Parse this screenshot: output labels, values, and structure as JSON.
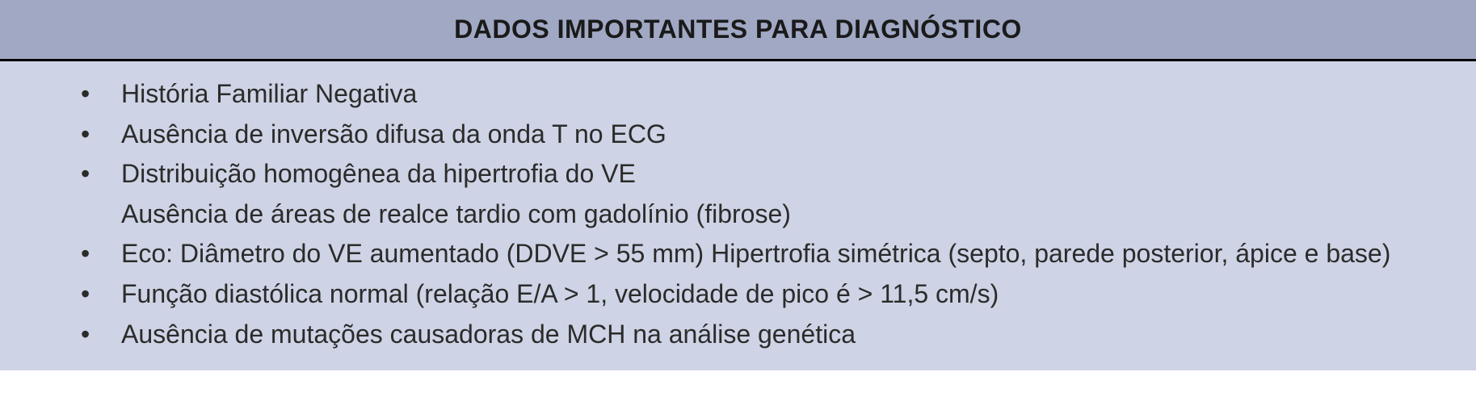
{
  "table": {
    "header_title": "DADOS IMPORTANTES PARA DIAGNÓSTICO",
    "header_background": "#a0a8c4",
    "header_border_bottom": "#000000",
    "content_background": "#ced4e5",
    "text_color": "#2b2b2b",
    "title_fontsize": 32,
    "item_fontsize": 32,
    "items": [
      {
        "text": "História Familiar Negativa"
      },
      {
        "text": "Ausência de inversão difusa da onda T no ECG"
      },
      {
        "text": "Distribuição homogênea da hipertrofia do VE",
        "subtext": "Ausência de áreas de realce tardio com gadolínio (fibrose)"
      },
      {
        "text": "Eco: Diâmetro do VE aumentado (DDVE > 55 mm) Hipertrofia simétrica (septo, parede posterior, ápice  e base)"
      },
      {
        "text": "Função diastólica normal (relação E/A > 1, velocidade de pico é > 11,5 cm/s)"
      },
      {
        "text": "Ausência de mutações causadoras de MCH na análise genética"
      }
    ]
  }
}
